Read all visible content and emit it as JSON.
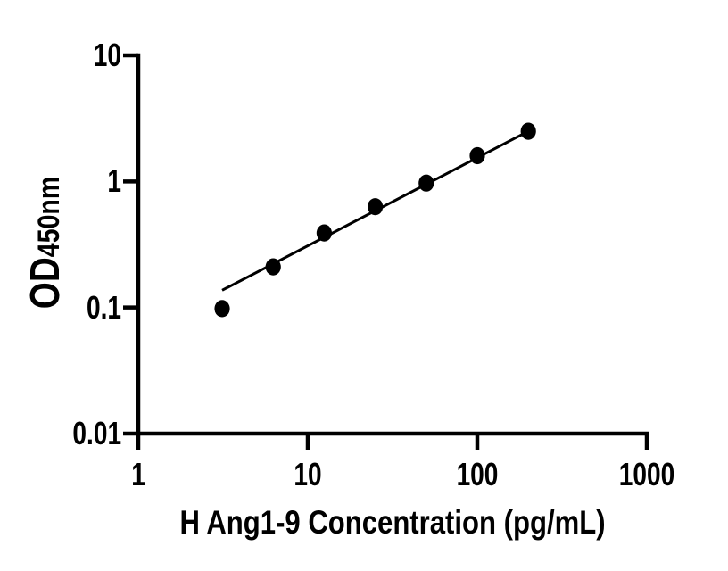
{
  "figure": {
    "background_color": "#ffffff",
    "axis_color": "#000000",
    "marker_color": "#000000",
    "line_color": "#000000"
  },
  "chart_data": {
    "type": "scatter",
    "title": "",
    "xlabel": "H Ang1-9 Concentration (pg/mL)",
    "ylabel_parts": {
      "main": "OD",
      "sub": "450nm"
    },
    "x_scale": "log",
    "y_scale": "log",
    "xlim": [
      1,
      1000
    ],
    "ylim": [
      0.01,
      10
    ],
    "x_ticks": [
      {
        "value": 1,
        "label": "1"
      },
      {
        "value": 10,
        "label": "10"
      },
      {
        "value": 100,
        "label": "100"
      },
      {
        "value": 1000,
        "label": "1000"
      }
    ],
    "y_ticks": [
      {
        "value": 0.01,
        "label": "0.01"
      },
      {
        "value": 0.1,
        "label": "0.1"
      },
      {
        "value": 1,
        "label": "1"
      },
      {
        "value": 10,
        "label": "10"
      }
    ],
    "grid": false,
    "legend_position": "none",
    "series": [
      {
        "name": "fit-line",
        "type": "line",
        "color": "#000000",
        "x": [
          3.125,
          200
        ],
        "y": [
          0.137,
          2.5
        ]
      },
      {
        "name": "standard-points",
        "type": "scatter",
        "marker": "filled-circle",
        "color": "#000000",
        "x": [
          3.125,
          6.25,
          12.5,
          25,
          50,
          100,
          200
        ],
        "y": [
          0.098,
          0.21,
          0.39,
          0.63,
          0.97,
          1.6,
          2.5
        ]
      }
    ]
  }
}
